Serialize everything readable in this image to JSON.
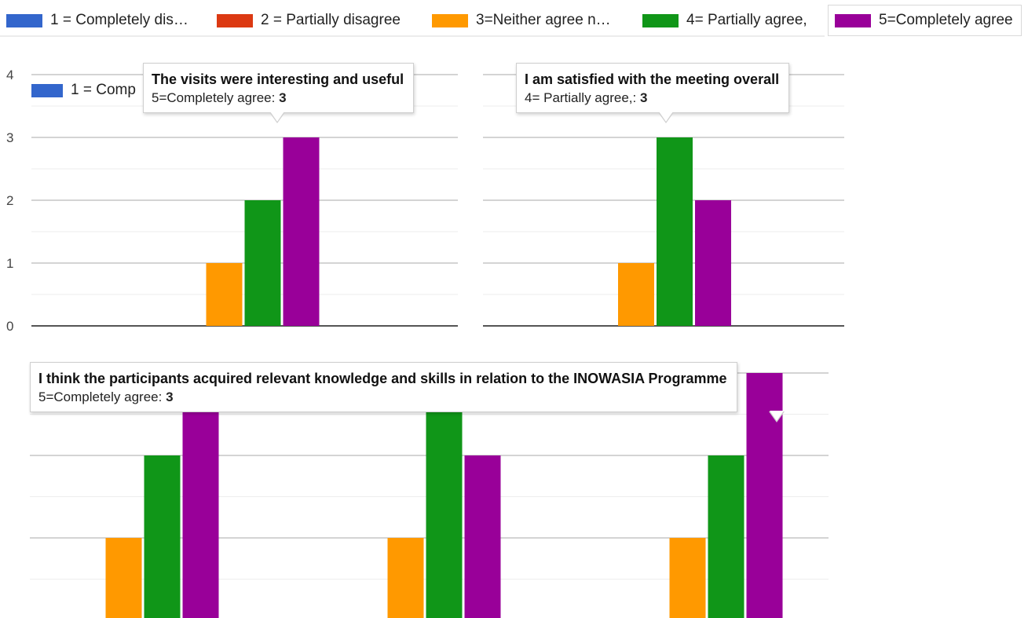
{
  "legend": [
    {
      "label": "1 = Completely dis…",
      "color": "#3366cc"
    },
    {
      "label": "2 = Partially disagree",
      "color": "#dc3912"
    },
    {
      "label": "3=Neither agree n…",
      "color": "#ff9900"
    },
    {
      "label": "4= Partially agree,",
      "color": "#109618"
    },
    {
      "label": "5=Completely agree",
      "color": "#990099"
    }
  ],
  "inner_legend_label": "1 = Comp",
  "chart_data": [
    {
      "type": "bar",
      "title": "The visits were interesting and useful",
      "categories": [
        ""
      ],
      "series": [
        {
          "name": "1 = Completely dis…",
          "values": [
            0
          ]
        },
        {
          "name": "2 = Partially disagree",
          "values": [
            0
          ]
        },
        {
          "name": "3=Neither agree n…",
          "values": [
            1
          ]
        },
        {
          "name": "4= Partially agree,",
          "values": [
            2
          ]
        },
        {
          "name": "5=Completely agree",
          "values": [
            3
          ]
        }
      ],
      "ylim": [
        0,
        4
      ],
      "yticks": [
        "0",
        "1",
        "2",
        "3",
        "4"
      ],
      "tooltip": {
        "title": "The visits were interesting and useful",
        "series": "5=Completely agree:",
        "value": "3"
      }
    },
    {
      "type": "bar",
      "title": "I am satisfied with the meeting overall",
      "categories": [
        ""
      ],
      "series": [
        {
          "name": "1 = Completely dis…",
          "values": [
            0
          ]
        },
        {
          "name": "2 = Partially disagree",
          "values": [
            0
          ]
        },
        {
          "name": "3=Neither agree n…",
          "values": [
            1
          ]
        },
        {
          "name": "4= Partially agree,",
          "values": [
            3
          ]
        },
        {
          "name": "5=Completely agree",
          "values": [
            2
          ]
        }
      ],
      "ylim": [
        0,
        4
      ],
      "tooltip": {
        "title": "I am satisfied with the meeting overall",
        "series": "4= Partially agree,:",
        "value": "3"
      }
    },
    {
      "type": "bar",
      "categories": [
        "",
        "",
        ""
      ],
      "series": [
        {
          "name": "1 = Completely dis…",
          "values": [
            0,
            0,
            0
          ]
        },
        {
          "name": "2 = Partially disagree",
          "values": [
            0,
            0,
            0
          ]
        },
        {
          "name": "3=Neither agree n…",
          "values": [
            1,
            1,
            1
          ]
        },
        {
          "name": "4= Partially agree,",
          "values": [
            2,
            3,
            2
          ]
        },
        {
          "name": "5=Completely agree",
          "values": [
            3,
            2,
            3
          ]
        }
      ],
      "ylim": [
        0,
        3
      ],
      "tooltip": {
        "title": "I think the participants acquired relevant knowledge and skills in relation to the INOWASIA Programme",
        "series": "5=Completely agree:",
        "value": "3"
      }
    }
  ]
}
